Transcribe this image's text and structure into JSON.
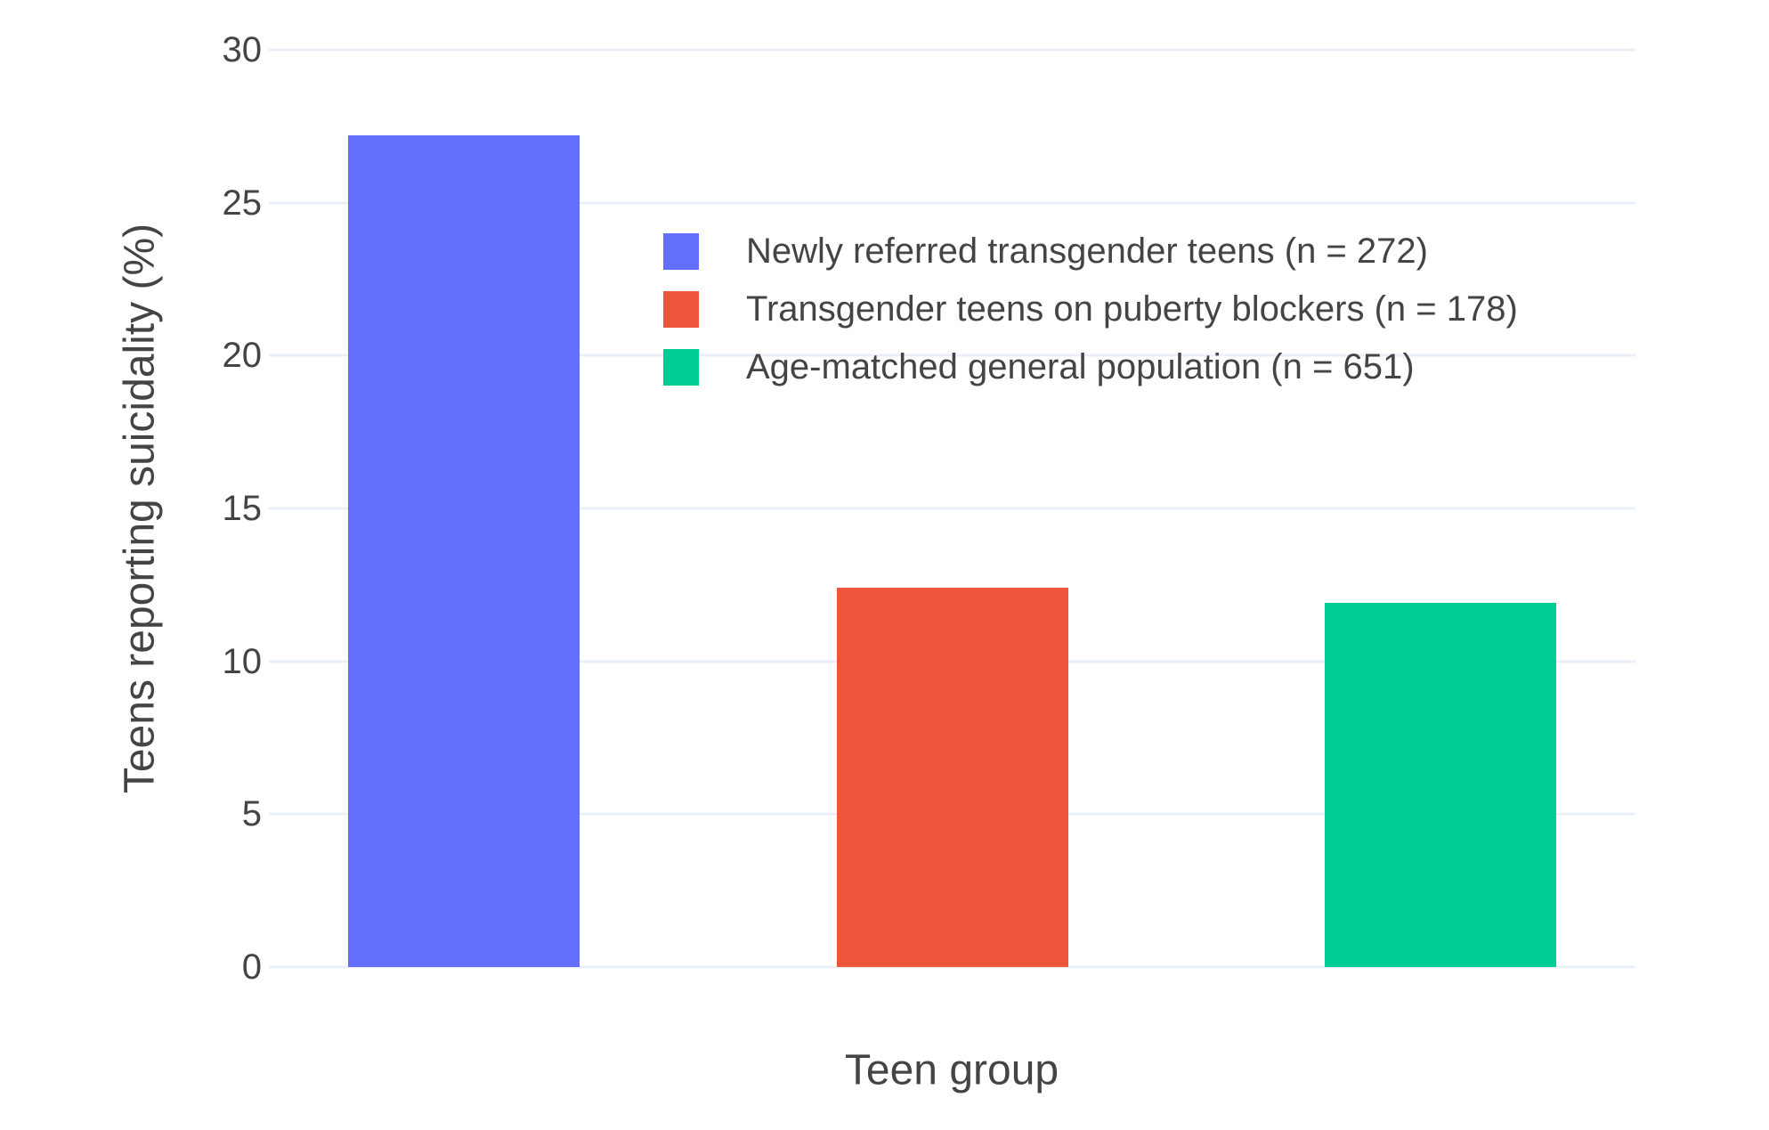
{
  "figure": {
    "background": "#FFFFFF",
    "text_color": "#444444",
    "grid_color": "#EBF0F8"
  },
  "chart_data": {
    "type": "bar",
    "title": "",
    "xlabel": "Teen group",
    "ylabel": "Teens reporting suicidality (%)",
    "categories": [
      "Newly referred transgender teens (n = 272)",
      "Transgender teens on puberty blockers (n = 178)",
      "Age-matched general population (n = 651)"
    ],
    "values": [
      27.2,
      12.4,
      11.9
    ],
    "colors": [
      "#636EFA",
      "#EF553B",
      "#00CC96"
    ],
    "ylim": [
      0,
      30
    ],
    "yticks": [
      0,
      5,
      10,
      15,
      20,
      25,
      30
    ],
    "grid": true,
    "legend_position": "inside top-right",
    "legend": [
      {
        "label": "Newly referred transgender teens (n = 272)",
        "color": "#636EFA"
      },
      {
        "label": "Transgender teens on puberty blockers (n = 178)",
        "color": "#EF553B"
      },
      {
        "label": "Age-matched general population (n = 651)",
        "color": "#00CC96"
      }
    ]
  }
}
